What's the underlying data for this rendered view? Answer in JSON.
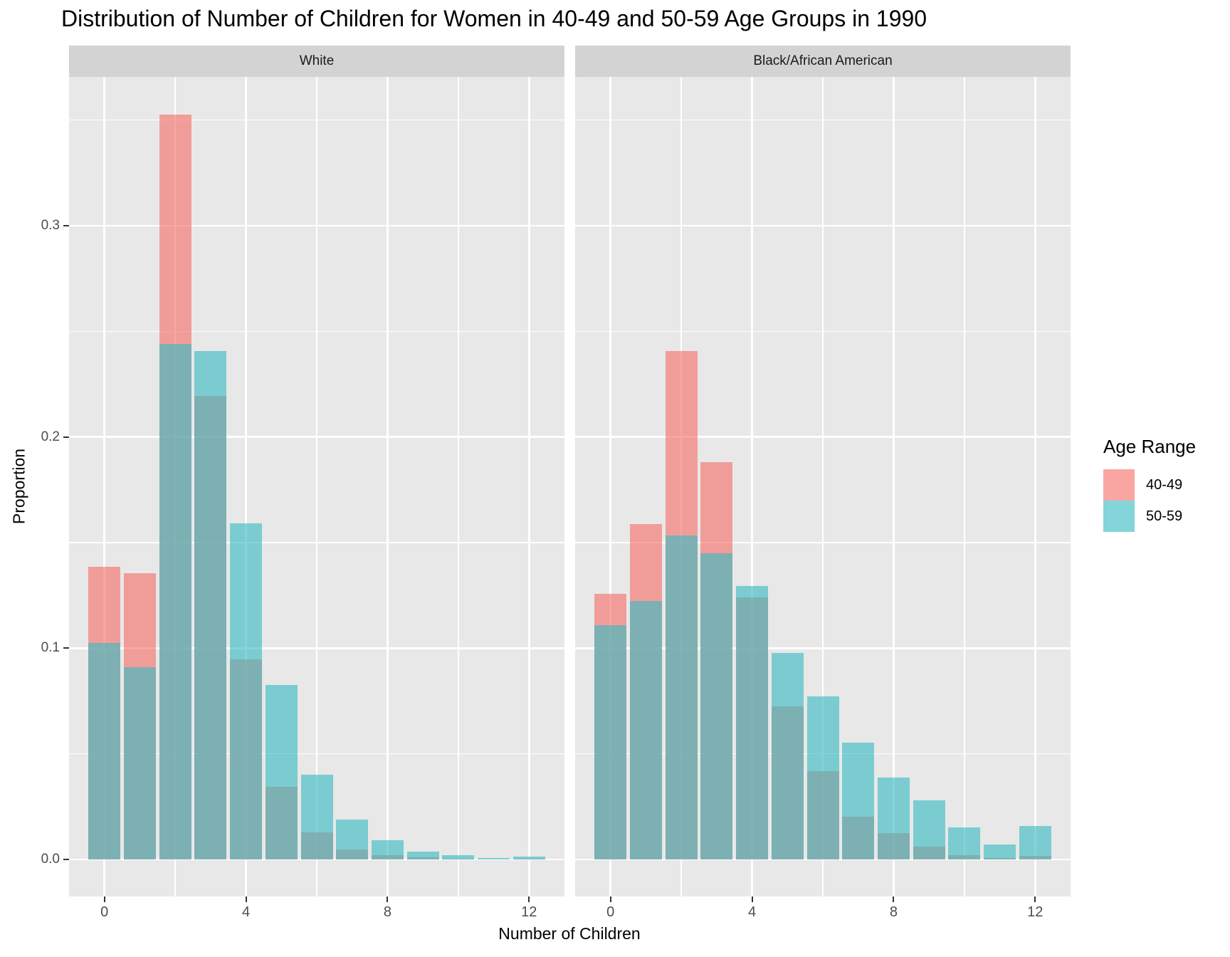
{
  "title": "Distribution of Number of Children for Women in 40-49 and 50-59 Age Groups in 1990",
  "chart_data": {
    "type": "bar",
    "subtype": "overlapping-histogram-faceted",
    "xlabel": "Number of Children",
    "ylabel": "Proportion",
    "categories": [
      0,
      1,
      2,
      3,
      4,
      5,
      6,
      7,
      8,
      9,
      10,
      11,
      12
    ],
    "x_ticks": [
      0,
      4,
      8,
      12
    ],
    "x_minor_ticks": [
      2,
      6,
      10
    ],
    "y_ticks": [
      0.0,
      0.1,
      0.2,
      0.3
    ],
    "y_tick_labels": [
      "0.0",
      "0.1",
      "0.2",
      "0.3"
    ],
    "y_minor_ticks": [
      0.05,
      0.15,
      0.25,
      0.35
    ],
    "xlim": [
      -1,
      13
    ],
    "ylim": [
      -0.017,
      0.37
    ],
    "bar_width": 0.9,
    "grid": true,
    "legend": {
      "title": "Age Range",
      "position": "right",
      "entries": [
        {
          "label": "40-49",
          "color": "rgba(246,112,107,0.62)",
          "solid_on_white": "#F5A19E"
        },
        {
          "label": "50-59",
          "color": "rgba(55,188,194,0.62)",
          "solid_on_white": "#7FD3D6"
        }
      ]
    },
    "facets": [
      {
        "label": "White",
        "series": [
          {
            "name": "40-49",
            "values": [
              0.1385,
              0.1355,
              0.3526,
              0.2194,
              0.0947,
              0.0344,
              0.0128,
              0.0047,
              0.002,
              0.001,
              0.0005,
              0.0,
              0.0003
            ]
          },
          {
            "name": "50-59",
            "values": [
              0.1025,
              0.091,
              0.244,
              0.2407,
              0.1591,
              0.0826,
              0.0401,
              0.0189,
              0.0091,
              0.0037,
              0.002,
              0.0007,
              0.0013
            ]
          }
        ]
      },
      {
        "label": "Black/African American",
        "series": [
          {
            "name": "40-49",
            "values": [
              0.1257,
              0.1587,
              0.2407,
              0.1881,
              0.124,
              0.0725,
              0.0418,
              0.0202,
              0.0125,
              0.0061,
              0.002,
              0.0007,
              0.0017
            ]
          },
          {
            "name": "50-59",
            "values": [
              0.1109,
              0.1224,
              0.1534,
              0.145,
              0.1294,
              0.0977,
              0.0772,
              0.0553,
              0.0388,
              0.028,
              0.0152,
              0.0071,
              0.0158
            ]
          }
        ]
      }
    ],
    "colors": {
      "panel_bg": "#E8E8E8",
      "strip_bg": "#D3D3D3",
      "gridline": "#FFFFFF",
      "tick": "#333333",
      "tick_label": "#4D4D4D",
      "text": "#000000"
    }
  }
}
